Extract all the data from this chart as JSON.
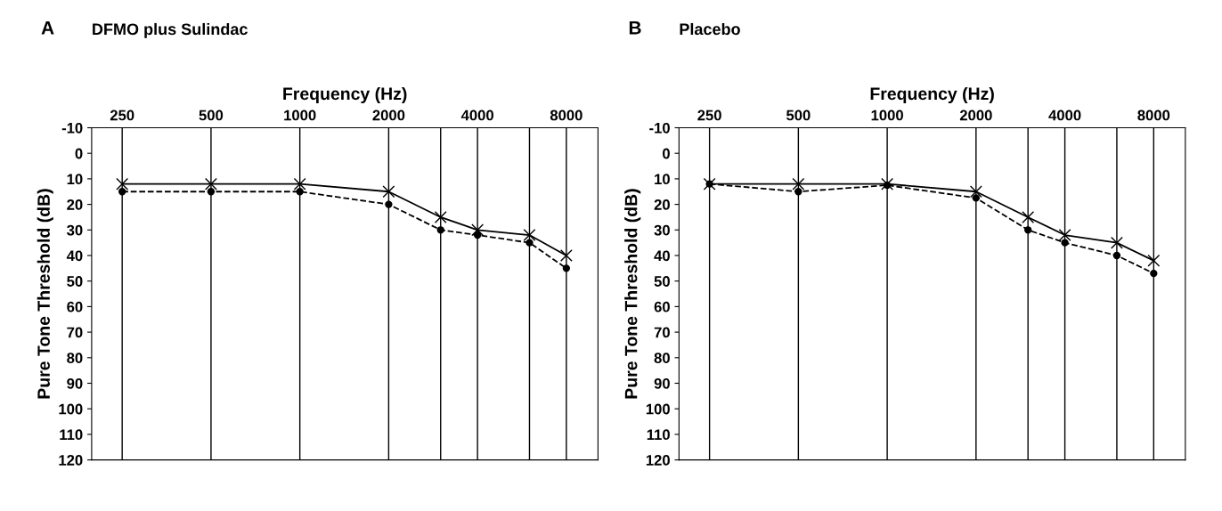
{
  "chart_data": [
    {
      "type": "line",
      "title": "DFMO plus Sulindac",
      "annotations": [
        "A"
      ],
      "xlabel": "Frequency (Hz)",
      "ylabel": "Pure Tone Threshold (dB)",
      "log": "x",
      "grid": "x",
      "tick_labels": "xy",
      "x": [
        250,
        500,
        1000,
        2000,
        3000,
        4000,
        6000,
        8000
      ],
      "xlim": [
        197,
        10240
      ],
      "xticks": [
        250,
        500,
        1000,
        2000,
        4000,
        8000
      ],
      "ref_lines": [
        {
          "axis": "x",
          "value": 3000,
          "color": "#000000"
        },
        {
          "axis": "x",
          "value": 6000,
          "color": "#000000"
        }
      ],
      "ylim": [
        120,
        -10
      ],
      "yticks": [
        -10,
        0,
        10,
        20,
        30,
        40,
        50,
        60,
        70,
        80,
        90,
        100,
        110,
        120
      ],
      "series": [
        {
          "color": "#000000",
          "marker": "cross",
          "line_style": "solid",
          "values": [
            12,
            12,
            12,
            15,
            25,
            30,
            32,
            40
          ]
        },
        {
          "color": "#000000",
          "marker": "circle",
          "line_style": "dashed",
          "values": [
            15,
            15,
            15,
            20,
            30,
            32,
            35,
            45
          ]
        }
      ]
    },
    {
      "type": "line",
      "title": "Placebo",
      "annotations": [
        "B"
      ],
      "xlabel": "Frequency (Hz)",
      "ylabel": "Pure Tone Threshold (dB)",
      "log": "x",
      "grid": "x",
      "tick_labels": "xy",
      "x": [
        250,
        500,
        1000,
        2000,
        3000,
        4000,
        6000,
        8000
      ],
      "xlim": [
        197,
        10240
      ],
      "xticks": [
        250,
        500,
        1000,
        2000,
        4000,
        8000
      ],
      "ref_lines": [
        {
          "axis": "x",
          "value": 3000,
          "color": "#000000"
        },
        {
          "axis": "x",
          "value": 6000,
          "color": "#000000"
        }
      ],
      "ylim": [
        120,
        -10
      ],
      "yticks": [
        -10,
        0,
        10,
        20,
        30,
        40,
        50,
        60,
        70,
        80,
        90,
        100,
        110,
        120
      ],
      "series": [
        {
          "color": "#000000",
          "marker": "cross",
          "line_style": "solid",
          "values": [
            12,
            12,
            12,
            15,
            25,
            32,
            35,
            42
          ]
        },
        {
          "color": "#000000",
          "marker": "circle",
          "line_style": "dashed",
          "values": [
            12,
            15,
            12.5,
            17.5,
            30,
            35,
            40,
            47
          ]
        }
      ]
    }
  ]
}
